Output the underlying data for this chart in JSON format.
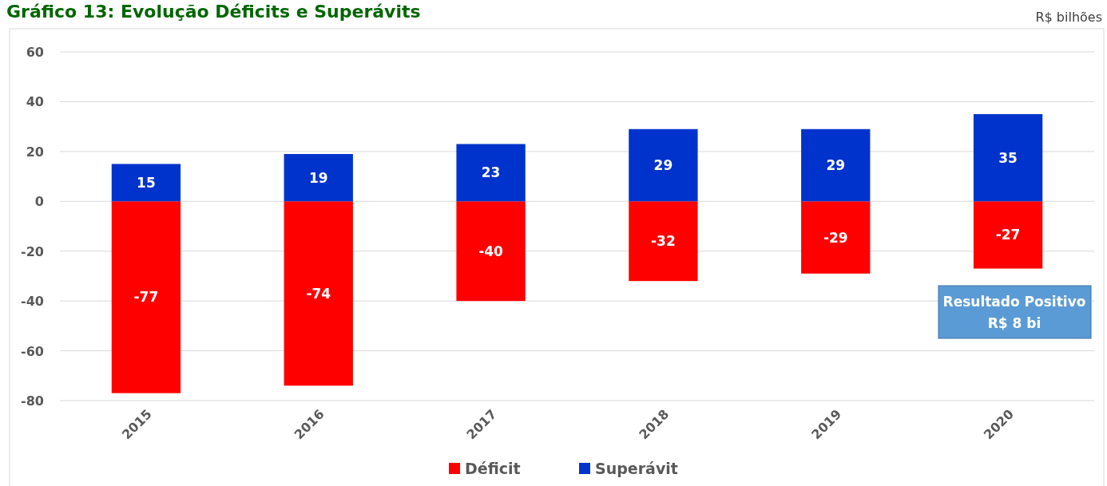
{
  "chart_data": {
    "type": "bar",
    "title": "Gráfico 13: Evolução Déficits e Superávits",
    "ylabel": "R$ bilhões",
    "categories": [
      "2015",
      "2016",
      "2017",
      "2018",
      "2019",
      "2020"
    ],
    "series": [
      {
        "name": "Déficit",
        "color": "#ff0000",
        "values": [
          -77,
          -74,
          -40,
          -32,
          -29,
          -27
        ]
      },
      {
        "name": "Superávit",
        "color": "#0033cc",
        "values": [
          15,
          19,
          23,
          29,
          29,
          35
        ]
      }
    ],
    "stacked": true,
    "data_labels": true,
    "ylim": [
      -80,
      60
    ],
    "yticks": [
      -80,
      -60,
      -40,
      -20,
      0,
      20,
      40,
      60
    ],
    "grid": "y",
    "legend": "bottom",
    "annotations": [
      "Resultado Positivo\nR$ 8 bi"
    ]
  }
}
